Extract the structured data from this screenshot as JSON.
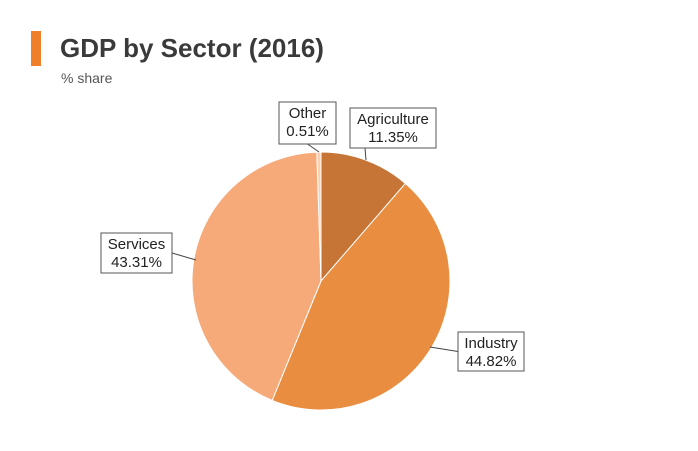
{
  "header": {
    "title": "GDP by Sector (2016)",
    "subtitle": "% share",
    "accent_color": "#f07f2a"
  },
  "chart_data": {
    "type": "pie",
    "title": "GDP by Sector (2016)",
    "subtitle": "% share",
    "slices": [
      {
        "name": "Agriculture",
        "value": 11.35,
        "label": "11.35%",
        "color": "#c67536"
      },
      {
        "name": "Industry",
        "value": 44.82,
        "label": "44.82%",
        "color": "#e98e40"
      },
      {
        "name": "Services",
        "value": 43.31,
        "label": "43.31%",
        "color": "#f6aa79"
      },
      {
        "name": "Other",
        "value": 0.51,
        "label": "0.51%",
        "color": "#fbd0b0"
      }
    ],
    "legend": "none",
    "start_angle": "12 o'clock",
    "direction": "clockwise"
  }
}
